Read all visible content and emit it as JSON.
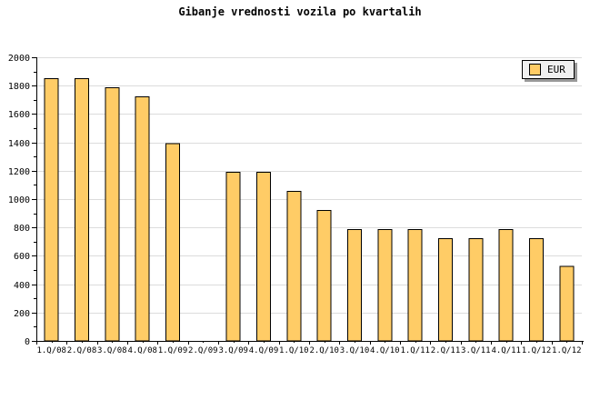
{
  "title": "Gibanje vrednosti vozila po kvartalih",
  "chart_data": {
    "type": "bar",
    "title": "Gibanje vrednosti vozila po kvartalih",
    "categories": [
      "1.Q/08",
      "2.Q/08",
      "3.Q/08",
      "4.Q/08",
      "1.Q/09",
      "2.Q/09",
      "3.Q/09",
      "4.Q/09",
      "1.Q/10",
      "2.Q/10",
      "3.Q/10",
      "4.Q/10",
      "1.Q/11",
      "2.Q/11",
      "3.Q/11",
      "4.Q/11",
      "1.Q/12",
      "1.Q/12"
    ],
    "series": [
      {
        "name": "EUR",
        "values": [
          1850,
          1850,
          1785,
          1720,
          1390,
          null,
          1190,
          1190,
          1055,
          920,
          785,
          785,
          785,
          720,
          720,
          785,
          720,
          525
        ]
      }
    ],
    "xlabel": "",
    "ylabel": "",
    "ylim": [
      0,
      2000
    ],
    "ytick_major": 200,
    "ytick_minor": 100,
    "grid": "horizontal-major",
    "legend": {
      "position": "top-right",
      "entries": [
        "EUR"
      ]
    },
    "colors": {
      "bar_fill": "#ffcc66",
      "bar_border": "#000000",
      "grid": "#dcdcdc",
      "axis": "#000000",
      "text": "#000000",
      "legend_bg": "#f0f0f0",
      "legend_shadow": "#999999",
      "background": "#ffffff"
    }
  }
}
